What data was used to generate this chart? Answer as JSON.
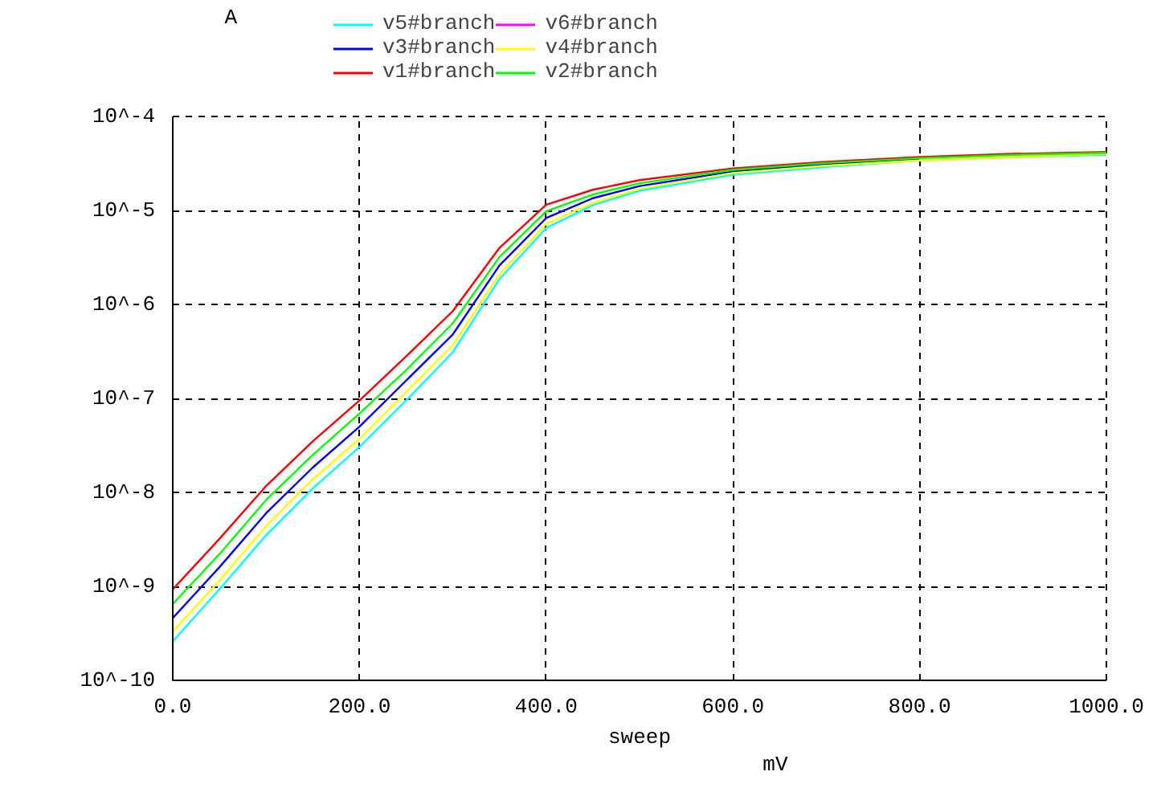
{
  "chart_data": {
    "type": "line",
    "ylabel": "A",
    "xlabel": "sweep",
    "annotations": [
      "mV"
    ],
    "x": [
      0,
      50,
      100,
      150,
      200,
      250,
      300,
      350,
      400,
      450,
      500,
      600,
      700,
      800,
      900,
      1000
    ],
    "series": [
      {
        "name": "v5#branch",
        "color": "#00ffff",
        "values": [
          2.6e-10,
          9.3e-10,
          3.5e-09,
          1.1e-08,
          3.05e-08,
          9.5e-08,
          3.1e-07,
          1.86e-06,
          6.5e-06,
          1.14e-05,
          1.62e-05,
          2.4e-05,
          2.9e-05,
          3.4e-05,
          3.7e-05,
          3.9e-05
        ]
      },
      {
        "name": "v6#branch",
        "color": "#ff00ff",
        "values": [
          null,
          null,
          null,
          null,
          null,
          null,
          null,
          null,
          null,
          null,
          null,
          null,
          null,
          null,
          null,
          null
        ]
      },
      {
        "name": "v3#branch",
        "color": "#0000ff",
        "values": [
          4.6e-10,
          1.6e-09,
          6e-09,
          1.84e-08,
          5e-08,
          1.55e-07,
          4.8e-07,
          2.6e-06,
          8.3e-06,
          1.35e-05,
          1.82e-05,
          2.6e-05,
          3.1e-05,
          3.55e-05,
          null,
          null
        ]
      },
      {
        "name": "v4#branch",
        "color": "#ffff00",
        "values": [
          3.3e-10,
          1.15e-09,
          4.4e-09,
          1.38e-08,
          3.7e-08,
          1.17e-07,
          3.7e-07,
          2.1e-06,
          7.2e-06,
          1.2e-05,
          1.7e-05,
          2.5e-05,
          3e-05,
          3.4e-05,
          3.7e-05,
          4e-05
        ]
      },
      {
        "name": "v1#branch",
        "color": "#ff0000",
        "values": [
          9.3e-10,
          3.2e-09,
          1.17e-08,
          3.5e-08,
          9.5e-08,
          2.8e-07,
          8.5e-07,
          4e-06,
          1.15e-05,
          1.66e-05,
          2.1e-05,
          2.8e-05,
          3.3e-05,
          3.7e-05,
          4e-05,
          4.2e-05
        ]
      },
      {
        "name": "v2#branch",
        "color": "#00ff00",
        "values": [
          6.5e-10,
          2.2e-09,
          8.3e-09,
          2.5e-08,
          6.9e-08,
          2e-07,
          6.3e-07,
          3.2e-06,
          9.8e-06,
          1.48e-05,
          1.95e-05,
          2.7e-05,
          3.2e-05,
          3.6e-05,
          3.9e-05,
          4.1e-05
        ]
      }
    ],
    "log": "y",
    "xlim": [
      0,
      1000
    ],
    "ylim": [
      1e-10,
      0.0001
    ],
    "xticks": [
      {
        "value": 0,
        "label": "0.0"
      },
      {
        "value": 200,
        "label": "200.0"
      },
      {
        "value": 400,
        "label": "400.0"
      },
      {
        "value": 600,
        "label": "600.0"
      },
      {
        "value": 800,
        "label": "800.0"
      },
      {
        "value": 1000,
        "label": "1000.0"
      }
    ],
    "yticks": [
      {
        "value": 1e-10,
        "label": "10^-10"
      },
      {
        "value": 1e-09,
        "label": "10^-9"
      },
      {
        "value": 1e-08,
        "label": "10^-8"
      },
      {
        "value": 1e-07,
        "label": "10^-7"
      },
      {
        "value": 1e-06,
        "label": "10^-6"
      },
      {
        "value": 1e-05,
        "label": "10^-5"
      },
      {
        "value": 0.0001,
        "label": "10^-4"
      }
    ],
    "grid": true,
    "legend": "top",
    "line_style": "solid",
    "marker": "none"
  }
}
